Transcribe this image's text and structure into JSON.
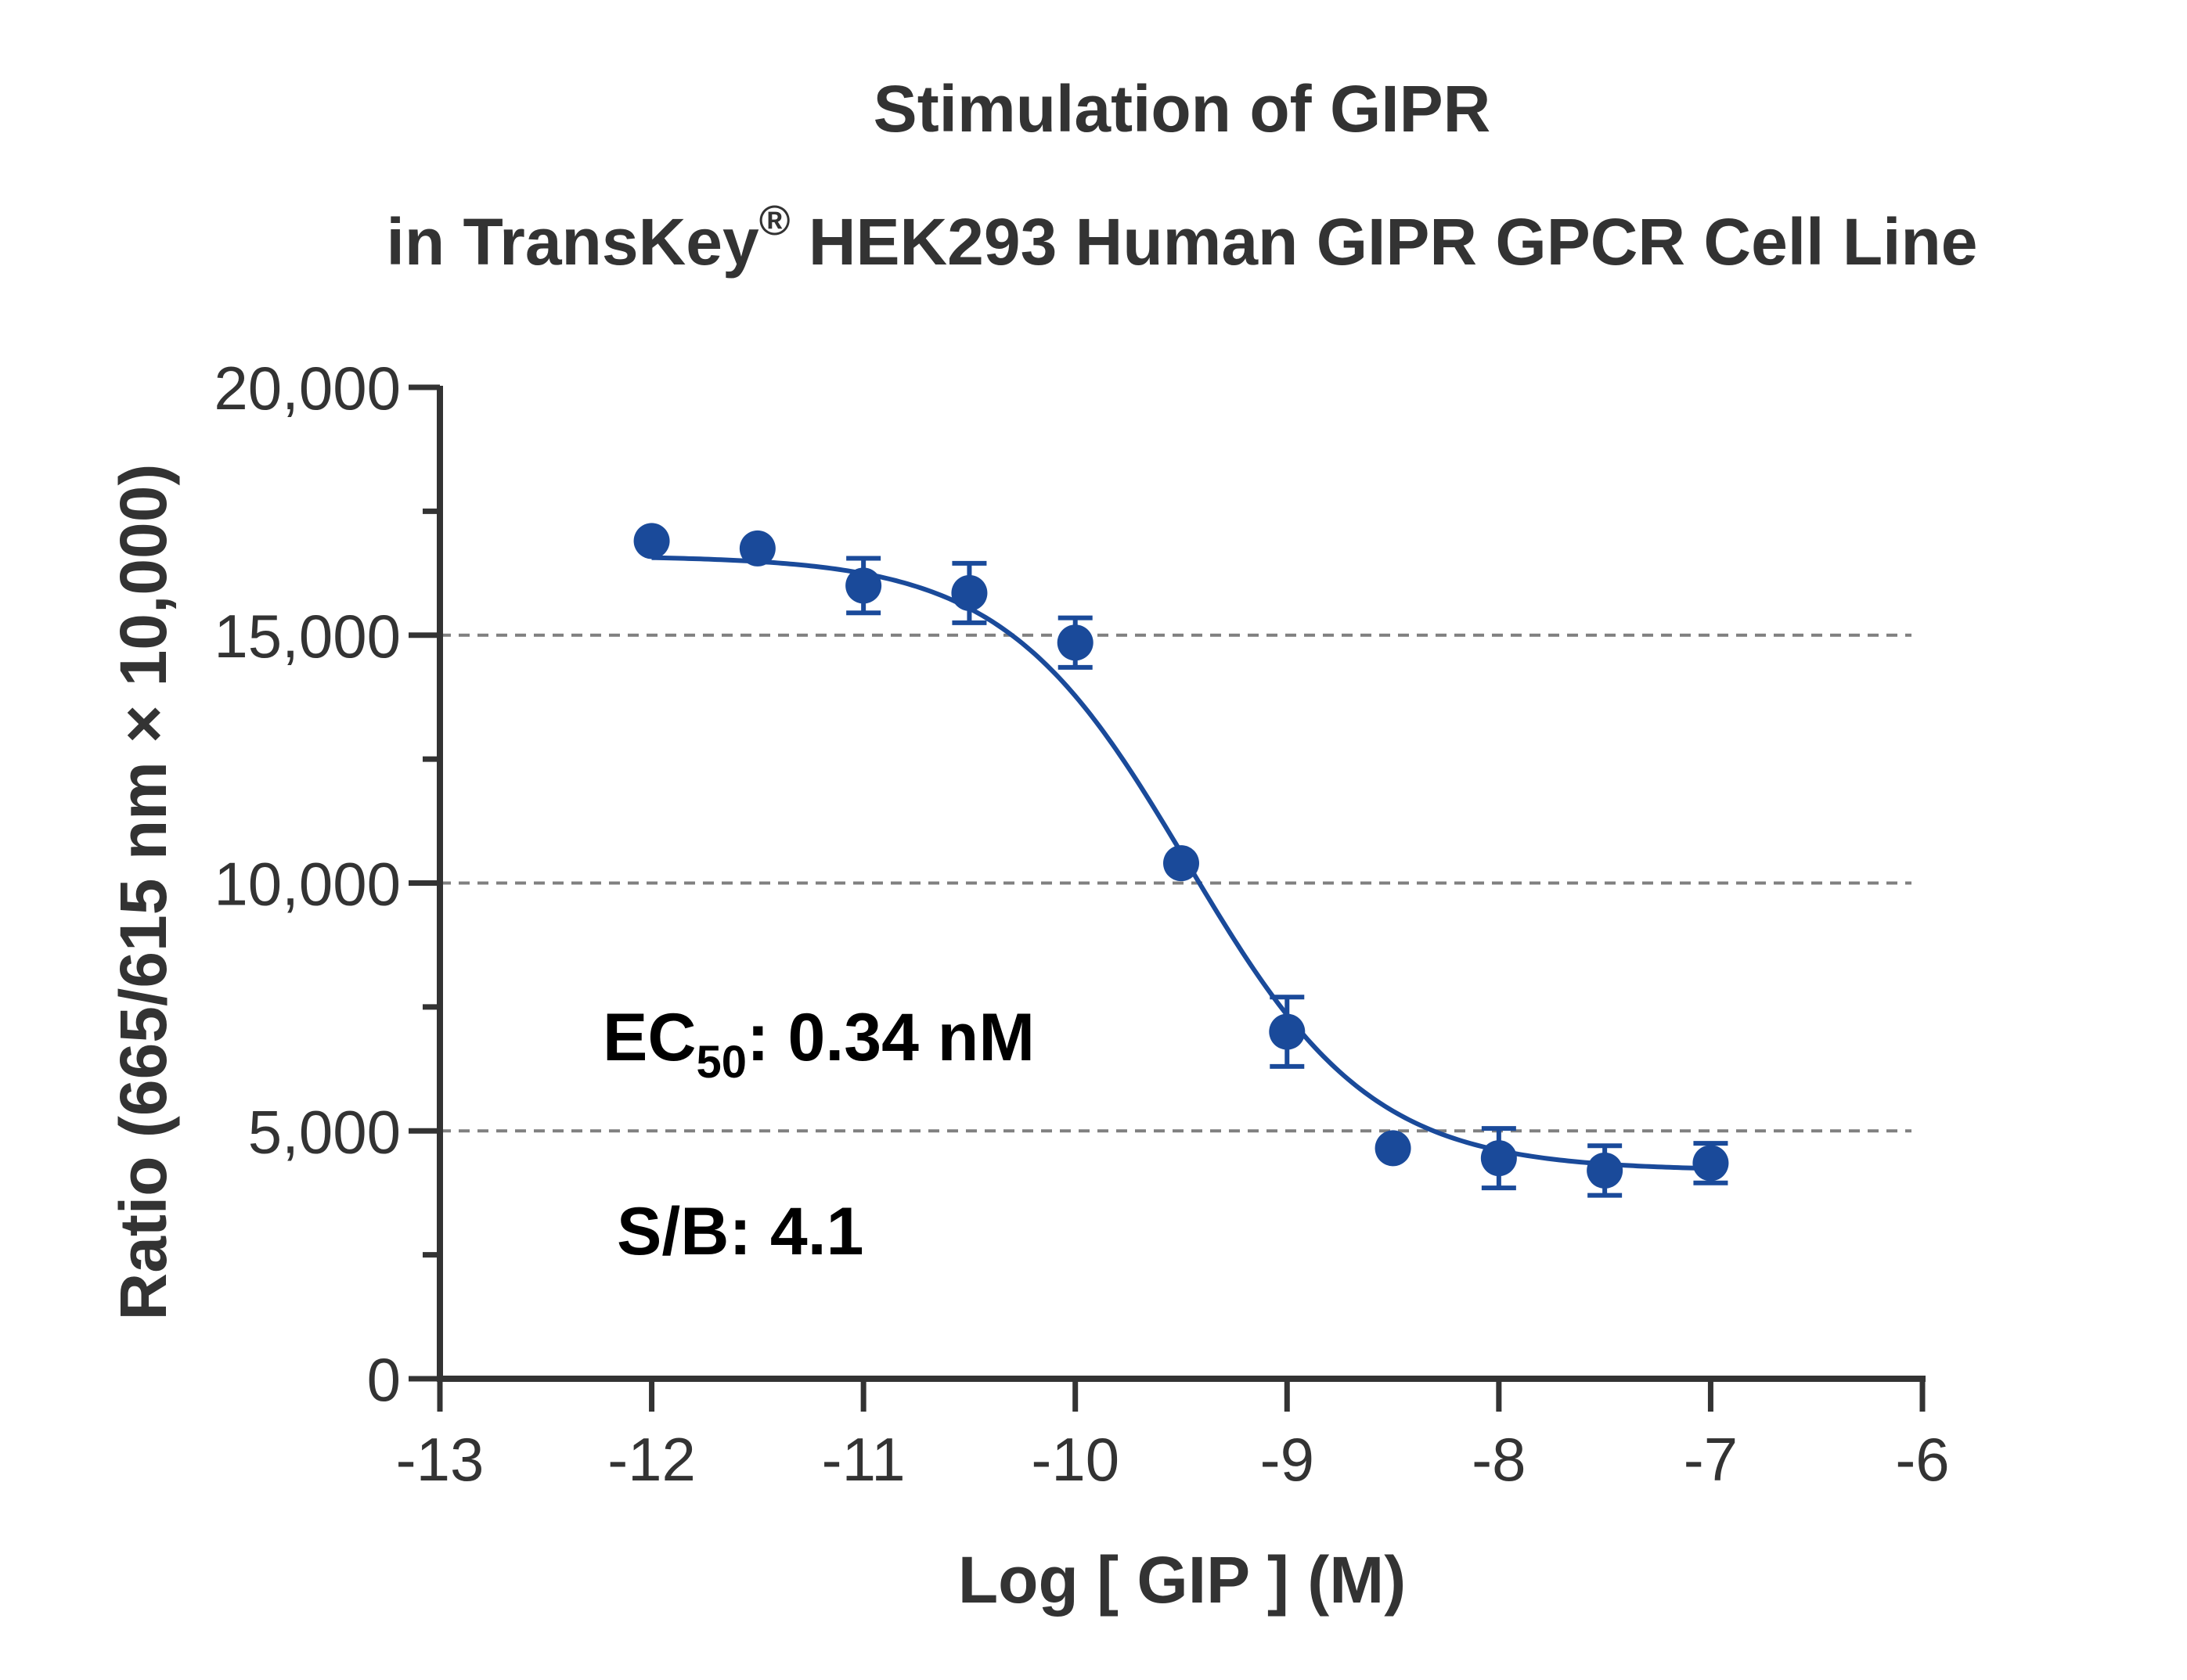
{
  "chart_data": {
    "type": "scatter",
    "title_line1": "Stimulation of  GIPR",
    "title_line2_prefix": "in TransKey",
    "title_line2_mark": "®",
    "title_line2_suffix": " HEK293 Human GIPR GPCR Cell Line",
    "xlabel": "Log [ GIP ]  (M)",
    "ylabel": "Ratio (665/615 nm × 10,000)",
    "xlim": [
      -13,
      -6
    ],
    "ylim": [
      0,
      20000
    ],
    "xticks": [
      -13,
      -12,
      -11,
      -10,
      -9,
      -8,
      -7,
      -6
    ],
    "xtick_labels": [
      "-13",
      "-12",
      "-11",
      "-10",
      "-9",
      "-8",
      "-7",
      "-6"
    ],
    "yticks": [
      0,
      5000,
      10000,
      15000,
      20000
    ],
    "ytick_labels": [
      "0",
      "5,000",
      "10,000",
      "15,000",
      "20,000"
    ],
    "ygrid": [
      5000,
      10000,
      15000
    ],
    "grid_style": "dashed horizontal",
    "series": [
      {
        "color": "#1a4a9a",
        "x": [
          -12,
          -11.5,
          -11,
          -10.5,
          -10,
          -9.5,
          -9,
          -8.5,
          -8,
          -7.5,
          -7
        ],
        "y": [
          16900,
          16750,
          16000,
          15850,
          14850,
          10400,
          7000,
          4650,
          4450,
          4200,
          4350
        ],
        "error": [
          0,
          0,
          550,
          600,
          500,
          0,
          700,
          0,
          600,
          500,
          400
        ]
      }
    ],
    "fit_curve": {
      "model": "4-parameter logistic",
      "top": 16600,
      "bottom": 4200,
      "log_ec50": -9.47,
      "hill_slope": -1.0
    },
    "annotations": {
      "ec50_prefix": "EC",
      "ec50_sub": "50",
      "ec50_suffix": ": 0.34 nM",
      "sb": "S/B: 4.1"
    }
  }
}
